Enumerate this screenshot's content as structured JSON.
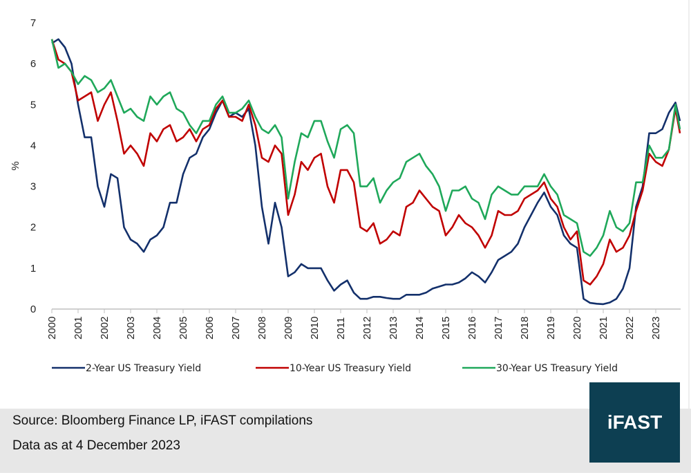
{
  "chart_data": {
    "type": "line",
    "title": "",
    "xlabel": "",
    "ylabel": "%",
    "ylim": [
      0,
      7
    ],
    "yticks": [
      "0",
      "1",
      "2",
      "3",
      "4",
      "5",
      "6",
      "7"
    ],
    "xticks": [
      "2000",
      "2001",
      "2002",
      "2003",
      "2004",
      "2005",
      "2006",
      "2007",
      "2008",
      "2009",
      "2010",
      "2011",
      "2012",
      "2013",
      "2014",
      "2015",
      "2016",
      "2017",
      "2018",
      "2019",
      "2020",
      "2021",
      "2022",
      "2023"
    ],
    "grid": false,
    "legend_position": "bottom",
    "x": [
      2000,
      2000.25,
      2000.5,
      2000.75,
      2001,
      2001.25,
      2001.5,
      2001.75,
      2002,
      2002.25,
      2002.5,
      2002.75,
      2003,
      2003.25,
      2003.5,
      2003.75,
      2004,
      2004.25,
      2004.5,
      2004.75,
      2005,
      2005.25,
      2005.5,
      2005.75,
      2006,
      2006.25,
      2006.5,
      2006.75,
      2007,
      2007.25,
      2007.5,
      2007.75,
      2008,
      2008.25,
      2008.5,
      2008.75,
      2009,
      2009.25,
      2009.5,
      2009.75,
      2010,
      2010.25,
      2010.5,
      2010.75,
      2011,
      2011.25,
      2011.5,
      2011.75,
      2012,
      2012.25,
      2012.5,
      2012.75,
      2013,
      2013.25,
      2013.5,
      2013.75,
      2014,
      2014.25,
      2014.5,
      2014.75,
      2015,
      2015.25,
      2015.5,
      2015.75,
      2016,
      2016.25,
      2016.5,
      2016.75,
      2017,
      2017.25,
      2017.5,
      2017.75,
      2018,
      2018.25,
      2018.5,
      2018.75,
      2019,
      2019.25,
      2019.5,
      2019.75,
      2020,
      2020.25,
      2020.5,
      2020.75,
      2021,
      2021.25,
      2021.5,
      2021.75,
      2022,
      2022.25,
      2022.5,
      2022.75,
      2023,
      2023.25,
      2023.5,
      2023.75,
      2023.92
    ],
    "series": [
      {
        "name": "2-Year US Treasury Yield",
        "color": "#13306b",
        "values": [
          6.5,
          6.6,
          6.4,
          6.0,
          5.0,
          4.2,
          4.2,
          3.0,
          2.5,
          3.3,
          3.2,
          2.0,
          1.7,
          1.6,
          1.4,
          1.7,
          1.8,
          2.0,
          2.6,
          2.6,
          3.3,
          3.7,
          3.8,
          4.2,
          4.4,
          4.8,
          5.1,
          4.7,
          4.8,
          4.7,
          4.9,
          4.0,
          2.5,
          1.6,
          2.6,
          2.0,
          0.8,
          0.9,
          1.1,
          1.0,
          1.0,
          1.0,
          0.7,
          0.45,
          0.6,
          0.7,
          0.4,
          0.25,
          0.25,
          0.3,
          0.3,
          0.27,
          0.25,
          0.25,
          0.35,
          0.35,
          0.35,
          0.4,
          0.5,
          0.55,
          0.6,
          0.6,
          0.65,
          0.75,
          0.9,
          0.8,
          0.65,
          0.9,
          1.2,
          1.3,
          1.4,
          1.6,
          2.0,
          2.3,
          2.6,
          2.85,
          2.5,
          2.3,
          1.8,
          1.6,
          1.5,
          0.25,
          0.15,
          0.13,
          0.12,
          0.16,
          0.25,
          0.5,
          1.0,
          2.5,
          3.0,
          4.3,
          4.3,
          4.4,
          4.8,
          5.05,
          4.6
        ]
      },
      {
        "name": "10-Year US Treasury Yield",
        "color": "#c00000",
        "values": [
          6.6,
          6.1,
          6.0,
          5.8,
          5.1,
          5.2,
          5.3,
          4.6,
          5.0,
          5.3,
          4.6,
          3.8,
          4.0,
          3.8,
          3.5,
          4.3,
          4.1,
          4.4,
          4.5,
          4.1,
          4.2,
          4.4,
          4.1,
          4.4,
          4.5,
          4.9,
          5.1,
          4.7,
          4.7,
          4.6,
          5.0,
          4.5,
          3.7,
          3.6,
          4.0,
          3.8,
          2.3,
          2.8,
          3.6,
          3.4,
          3.7,
          3.8,
          3.0,
          2.6,
          3.4,
          3.4,
          3.1,
          2.0,
          1.9,
          2.1,
          1.6,
          1.7,
          1.9,
          1.8,
          2.5,
          2.6,
          2.9,
          2.7,
          2.5,
          2.4,
          1.8,
          2.0,
          2.3,
          2.1,
          2.0,
          1.8,
          1.5,
          1.8,
          2.4,
          2.3,
          2.3,
          2.4,
          2.7,
          2.8,
          2.9,
          3.1,
          2.7,
          2.5,
          2.0,
          1.7,
          1.9,
          0.7,
          0.6,
          0.8,
          1.1,
          1.7,
          1.4,
          1.5,
          1.8,
          2.4,
          2.9,
          3.8,
          3.6,
          3.5,
          3.9,
          4.9,
          4.3
        ]
      },
      {
        "name": "30-Year US Treasury Yield",
        "color": "#1fa85a",
        "values": [
          6.6,
          5.9,
          6.0,
          5.8,
          5.5,
          5.7,
          5.6,
          5.3,
          5.4,
          5.6,
          5.2,
          4.8,
          4.9,
          4.7,
          4.6,
          5.2,
          5.0,
          5.2,
          5.3,
          4.9,
          4.8,
          4.5,
          4.3,
          4.6,
          4.6,
          5.0,
          5.2,
          4.8,
          4.8,
          4.9,
          5.1,
          4.7,
          4.4,
          4.3,
          4.5,
          4.2,
          2.7,
          3.6,
          4.3,
          4.2,
          4.6,
          4.6,
          4.1,
          3.7,
          4.4,
          4.5,
          4.3,
          3.0,
          3.0,
          3.2,
          2.6,
          2.9,
          3.1,
          3.2,
          3.6,
          3.7,
          3.8,
          3.5,
          3.3,
          3.0,
          2.4,
          2.9,
          2.9,
          3.0,
          2.7,
          2.6,
          2.2,
          2.8,
          3.0,
          2.9,
          2.8,
          2.8,
          3.0,
          3.0,
          3.0,
          3.3,
          3.0,
          2.8,
          2.3,
          2.2,
          2.1,
          1.4,
          1.3,
          1.5,
          1.8,
          2.4,
          2.0,
          1.9,
          2.1,
          3.1,
          3.1,
          4.0,
          3.7,
          3.7,
          3.9,
          5.0,
          4.4
        ]
      }
    ]
  },
  "footer": {
    "source": "Source: Bloomberg Finance LP, iFAST compilations",
    "date": "Data as at 4 December 2023",
    "logo": "iFAST"
  }
}
